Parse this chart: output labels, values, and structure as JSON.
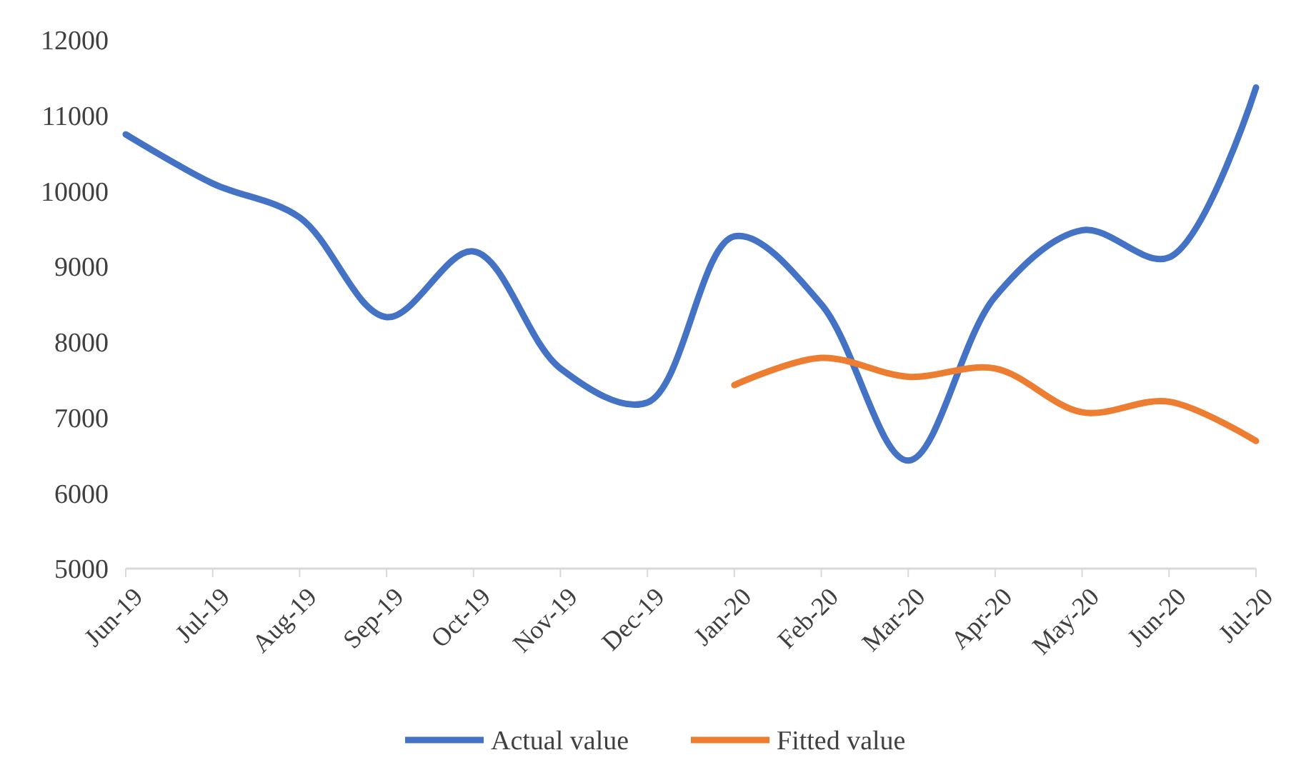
{
  "chart_data": {
    "type": "line",
    "categories": [
      "Jun-19",
      "Jul-19",
      "Aug-19",
      "Sep-19",
      "Oct-19",
      "Nov-19",
      "Dec-19",
      "Jan-20",
      "Feb-20",
      "Mar-20",
      "Apr-20",
      "May-20",
      "Jun-20",
      "Jul-20"
    ],
    "series": [
      {
        "name": "Actual value",
        "color": "#4472c4",
        "values": [
          10750,
          10100,
          9650,
          8330,
          9200,
          7650,
          7200,
          9400,
          8500,
          6430,
          8600,
          9480,
          9120,
          11370
        ]
      },
      {
        "name": "Fitted value",
        "color": "#ed7d31",
        "values": [
          null,
          null,
          null,
          null,
          null,
          null,
          null,
          7430,
          7790,
          7540,
          7650,
          7070,
          7210,
          6690
        ]
      }
    ],
    "ylim": [
      5000,
      12000
    ],
    "yticks": [
      5000,
      6000,
      7000,
      8000,
      9000,
      10000,
      11000,
      12000
    ],
    "grid": false,
    "legend": "bottom",
    "marker": "none",
    "line_style": "solid"
  }
}
